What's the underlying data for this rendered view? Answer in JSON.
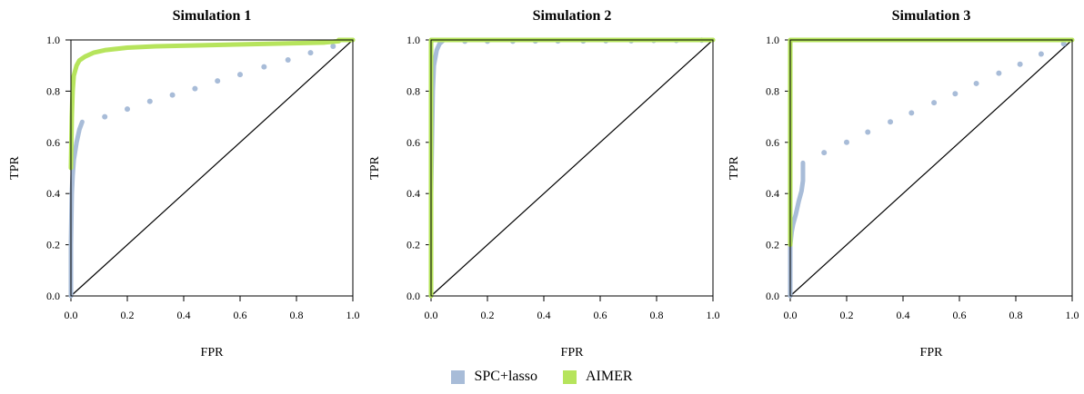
{
  "colors": {
    "spc_lasso": "#a8bcd8",
    "aimer": "#b6e45c",
    "diagonal": "#000000"
  },
  "legend": {
    "items": [
      {
        "label": "SPC+lasso",
        "color": "#a8bcd8"
      },
      {
        "label": "AIMER",
        "color": "#b6e45c"
      }
    ]
  },
  "chart_data": [
    {
      "type": "line",
      "title": "Simulation 1",
      "xlabel": "FPR",
      "ylabel": "TPR",
      "xlim": [
        0,
        1
      ],
      "ylim": [
        0,
        1
      ],
      "xticks": [
        "0.0",
        "0.2",
        "0.4",
        "0.6",
        "0.8",
        "1.0"
      ],
      "yticks": [
        "0.0",
        "0.2",
        "0.4",
        "0.6",
        "0.8",
        "1.0"
      ],
      "series": [
        {
          "name": "SPC+lasso",
          "curve": [
            [
              0,
              0
            ],
            [
              0,
              0.2
            ],
            [
              0.003,
              0.4
            ],
            [
              0.006,
              0.47
            ],
            [
              0.01,
              0.53
            ],
            [
              0.02,
              0.6
            ],
            [
              0.03,
              0.65
            ],
            [
              0.04,
              0.68
            ]
          ],
          "points": [
            [
              0.12,
              0.7
            ],
            [
              0.2,
              0.73
            ],
            [
              0.28,
              0.76
            ],
            [
              0.36,
              0.785
            ],
            [
              0.44,
              0.81
            ],
            [
              0.52,
              0.84
            ],
            [
              0.6,
              0.865
            ],
            [
              0.685,
              0.895
            ],
            [
              0.77,
              0.922
            ],
            [
              0.85,
              0.95
            ],
            [
              0.93,
              0.975
            ]
          ]
        },
        {
          "name": "AIMER",
          "curve": [
            [
              0,
              0.5
            ],
            [
              0.003,
              0.7
            ],
            [
              0.006,
              0.8
            ],
            [
              0.01,
              0.86
            ],
            [
              0.02,
              0.9
            ],
            [
              0.03,
              0.92
            ],
            [
              0.05,
              0.935
            ],
            [
              0.08,
              0.95
            ],
            [
              0.12,
              0.96
            ],
            [
              0.2,
              0.97
            ],
            [
              0.3,
              0.975
            ],
            [
              0.5,
              0.98
            ],
            [
              0.7,
              0.985
            ],
            [
              0.9,
              0.99
            ],
            [
              0.95,
              0.995
            ],
            [
              0.95,
              1.0
            ],
            [
              1.0,
              1.0
            ]
          ]
        }
      ]
    },
    {
      "type": "line",
      "title": "Simulation 2",
      "xlabel": "FPR",
      "ylabel": "TPR",
      "xlim": [
        0,
        1
      ],
      "ylim": [
        0,
        1
      ],
      "xticks": [
        "0.0",
        "0.2",
        "0.4",
        "0.6",
        "0.8",
        "1.0"
      ],
      "yticks": [
        "0.0",
        "0.2",
        "0.4",
        "0.6",
        "0.8",
        "1.0"
      ],
      "series": [
        {
          "name": "SPC+lasso",
          "curve": [
            [
              0,
              0
            ],
            [
              0,
              0.4
            ],
            [
              0.003,
              0.6
            ],
            [
              0.006,
              0.8
            ],
            [
              0.01,
              0.9
            ],
            [
              0.02,
              0.96
            ],
            [
              0.03,
              0.985
            ],
            [
              0.045,
              1.0
            ]
          ],
          "points": [
            [
              0.12,
              0.995
            ],
            [
              0.2,
              0.995
            ],
            [
              0.29,
              0.995
            ],
            [
              0.37,
              0.996
            ],
            [
              0.45,
              0.996
            ],
            [
              0.54,
              0.996
            ],
            [
              0.62,
              0.997
            ],
            [
              0.71,
              0.997
            ],
            [
              0.79,
              0.998
            ],
            [
              0.87,
              0.998
            ],
            [
              0.96,
              0.999
            ]
          ]
        },
        {
          "name": "AIMER",
          "curve": [
            [
              0,
              0
            ],
            [
              0,
              1.0
            ],
            [
              1.0,
              1.0
            ]
          ]
        }
      ]
    },
    {
      "type": "line",
      "title": "Simulation 3",
      "xlabel": "FPR",
      "ylabel": "TPR",
      "xlim": [
        0,
        1
      ],
      "ylim": [
        0,
        1
      ],
      "xticks": [
        "0.0",
        "0.2",
        "0.4",
        "0.6",
        "0.8",
        "1.0"
      ],
      "yticks": [
        "0.0",
        "0.2",
        "0.4",
        "0.6",
        "0.8",
        "1.0"
      ],
      "series": [
        {
          "name": "SPC+lasso",
          "curve": [
            [
              0,
              0
            ],
            [
              0,
              0.2
            ],
            [
              0.005,
              0.25
            ],
            [
              0.01,
              0.28
            ],
            [
              0.02,
              0.32
            ],
            [
              0.03,
              0.37
            ],
            [
              0.04,
              0.41
            ],
            [
              0.045,
              0.45
            ],
            [
              0.045,
              0.52
            ]
          ],
          "points": [
            [
              0.12,
              0.56
            ],
            [
              0.2,
              0.6
            ],
            [
              0.275,
              0.64
            ],
            [
              0.355,
              0.68
            ],
            [
              0.43,
              0.715
            ],
            [
              0.51,
              0.755
            ],
            [
              0.585,
              0.79
            ],
            [
              0.66,
              0.83
            ],
            [
              0.74,
              0.87
            ],
            [
              0.815,
              0.905
            ],
            [
              0.89,
              0.945
            ],
            [
              0.97,
              0.985
            ]
          ]
        },
        {
          "name": "AIMER",
          "curve": [
            [
              0,
              0.2
            ],
            [
              0,
              1.0
            ],
            [
              1.0,
              1.0
            ]
          ]
        }
      ]
    }
  ]
}
